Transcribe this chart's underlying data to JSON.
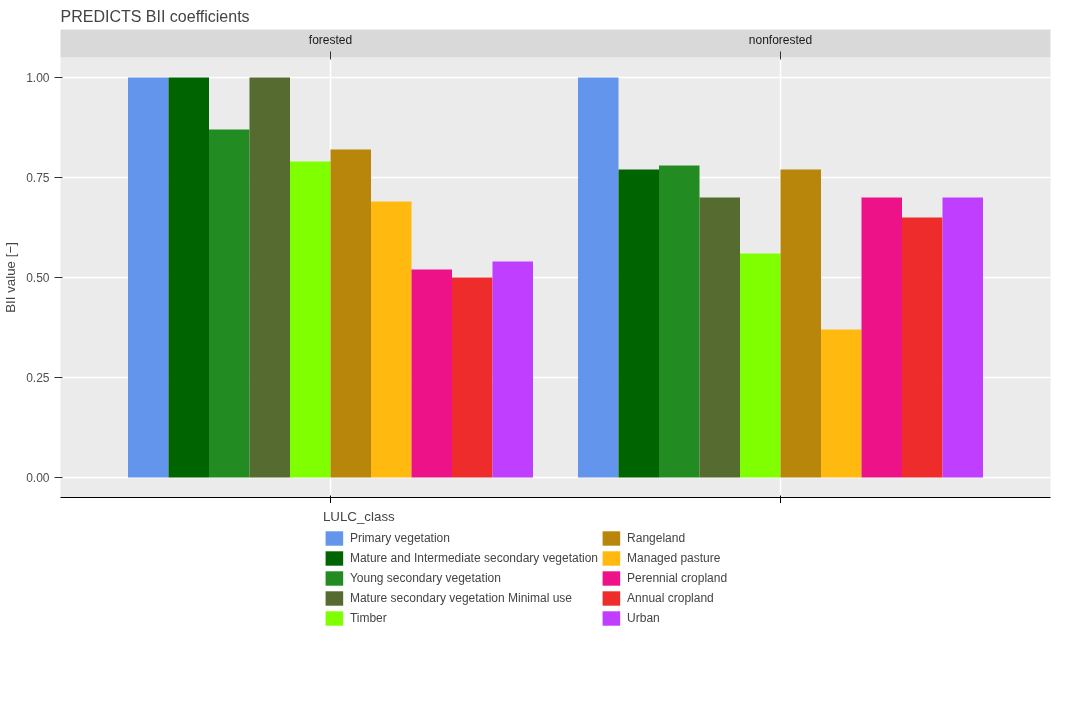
{
  "chart_data": {
    "type": "bar",
    "title": "PREDICTS BII coefficients",
    "ylabel": "BII value [−]",
    "categories": [
      "forested",
      "nonforested"
    ],
    "ylim": [
      -0.05,
      1.05
    ],
    "yticks": [
      {
        "value": 0,
        "label": "0.00"
      },
      {
        "value": 0.25,
        "label": "0.25"
      },
      {
        "value": 0.5,
        "label": "0.50"
      },
      {
        "value": 0.75,
        "label": "0.75"
      },
      {
        "value": 1,
        "label": "1.00"
      }
    ],
    "grid": true,
    "legend": "bottom",
    "legend_title": "LULC_class",
    "series": [
      {
        "name": "Primary vegetation",
        "color": "#6495ed",
        "values": [
          1.0,
          1.0
        ]
      },
      {
        "name": "Mature and Intermediate secondary vegetation",
        "color": "#006400",
        "values": [
          1.0,
          0.77
        ]
      },
      {
        "name": "Young secondary vegetation",
        "color": "#228b22",
        "values": [
          0.87,
          0.78
        ]
      },
      {
        "name": "Mature secondary vegetation Minimal use",
        "color": "#556b2f",
        "values": [
          1.0,
          0.7
        ]
      },
      {
        "name": "Timber",
        "color": "#7fff00",
        "values": [
          0.79,
          0.56
        ]
      },
      {
        "name": "Rangeland",
        "color": "#b8860b",
        "values": [
          0.82,
          0.77
        ]
      },
      {
        "name": "Managed pasture",
        "color": "#ffb90f",
        "values": [
          0.69,
          0.37
        ]
      },
      {
        "name": "Perennial cropland",
        "color": "#ee1289",
        "values": [
          0.52,
          0.7
        ]
      },
      {
        "name": "Annual cropland",
        "color": "#ee2c2c",
        "values": [
          0.5,
          0.65
        ]
      },
      {
        "name": "Urban",
        "color": "#bf3eff",
        "values": [
          0.54,
          0.7
        ]
      }
    ]
  }
}
